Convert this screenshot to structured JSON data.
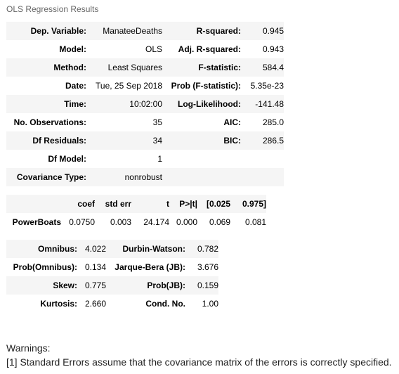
{
  "caption": "OLS Regression Results",
  "summary_rows": [
    [
      "Dep. Variable:",
      "ManateeDeaths",
      "R-squared:",
      "0.945"
    ],
    [
      "Model:",
      "OLS",
      "Adj. R-squared:",
      "0.943"
    ],
    [
      "Method:",
      "Least Squares",
      "F-statistic:",
      "584.4"
    ],
    [
      "Date:",
      "Tue, 25 Sep 2018",
      "Prob (F-statistic):",
      "5.35e-23"
    ],
    [
      "Time:",
      "10:02:00",
      "Log-Likelihood:",
      "-141.48"
    ],
    [
      "No. Observations:",
      "35",
      "AIC:",
      "285.0"
    ],
    [
      "Df Residuals:",
      "34",
      "BIC:",
      "286.5"
    ],
    [
      "Df Model:",
      "1",
      "",
      ""
    ],
    [
      "Covariance Type:",
      "nonrobust",
      "",
      ""
    ]
  ],
  "coef_header": [
    "",
    "coef",
    "std err",
    "t",
    "P>|t|",
    "[0.025",
    "0.975]"
  ],
  "coef_rows": [
    [
      "PowerBoats",
      "0.0750",
      "0.003",
      "24.174",
      "0.000",
      "0.069",
      "0.081"
    ]
  ],
  "diag_rows": [
    [
      "Omnibus:",
      "4.022",
      "Durbin-Watson:",
      "0.782"
    ],
    [
      "Prob(Omnibus):",
      "0.134",
      "Jarque-Bera (JB):",
      "3.676"
    ],
    [
      "Skew:",
      "0.775",
      "Prob(JB):",
      "0.159"
    ],
    [
      "Kurtosis:",
      "2.660",
      "Cond. No.",
      "1.00"
    ]
  ],
  "warnings": {
    "title": "Warnings:",
    "lines": [
      "[1] Standard Errors assume that the covariance matrix of the errors is correctly specified."
    ]
  }
}
